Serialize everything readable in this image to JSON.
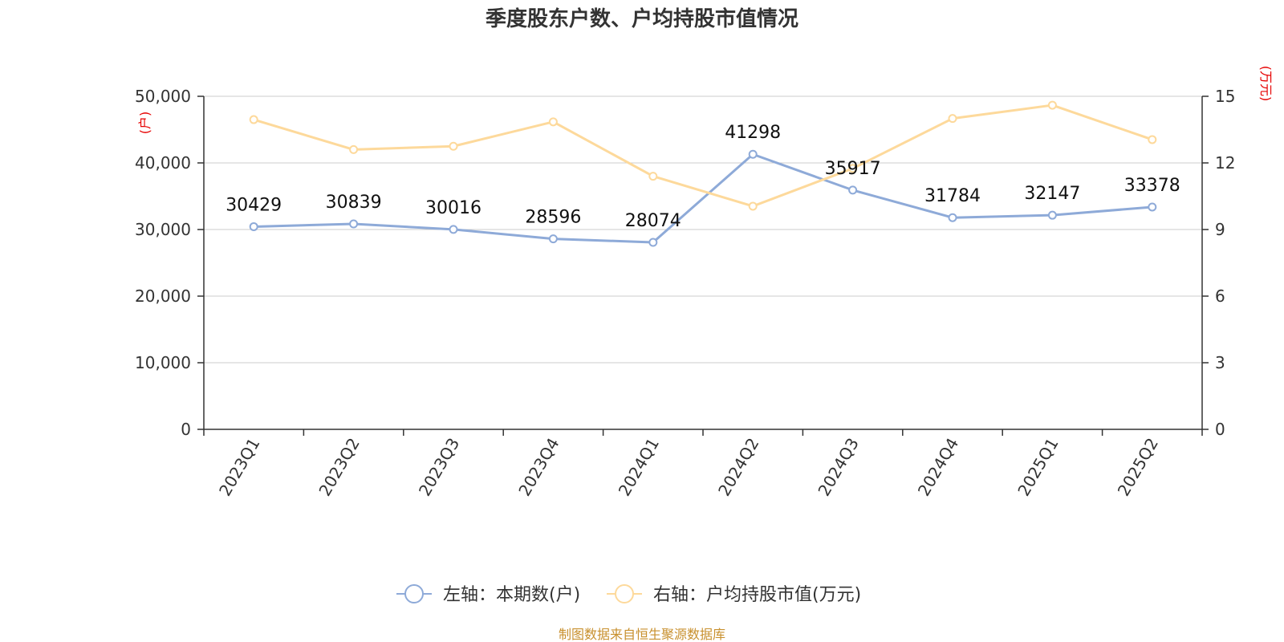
{
  "chart_data": {
    "type": "line",
    "title": "季度股东户数、户均持股市值情况",
    "categories": [
      "2023Q1",
      "2023Q2",
      "2023Q3",
      "2023Q4",
      "2024Q1",
      "2024Q2",
      "2024Q3",
      "2024Q4",
      "2025Q1",
      "2025Q2"
    ],
    "series": [
      {
        "name": "左轴：本期数(户)",
        "axis": "left",
        "color": "#8eaad8",
        "values": [
          30429,
          30839,
          30016,
          28596,
          28074,
          41298,
          35917,
          31784,
          32147,
          33378
        ],
        "data_labels": [
          "30429",
          "30839",
          "30016",
          "28596",
          "28074",
          "41298",
          "35917",
          "31784",
          "32147",
          "33378"
        ]
      },
      {
        "name": "右轴：户均持股市值(万元)",
        "axis": "right",
        "color": "#fdd99b",
        "values": [
          13.95,
          12.6,
          12.75,
          13.85,
          11.4,
          10.05,
          11.75,
          14.0,
          14.6,
          13.05
        ]
      }
    ],
    "left_axis": {
      "unit": "(户)",
      "ylim": [
        0,
        50000
      ],
      "ticks": [
        0,
        10000,
        20000,
        30000,
        40000,
        50000
      ],
      "tick_labels": [
        "0",
        "10,000",
        "20,000",
        "30,000",
        "40,000",
        "50,000"
      ]
    },
    "right_axis": {
      "unit": "(万元)",
      "ylim": [
        0,
        15
      ],
      "ticks": [
        0,
        3,
        6,
        9,
        12,
        15
      ],
      "tick_labels": [
        "0",
        "3",
        "6",
        "9",
        "12",
        "15"
      ]
    },
    "grid": true,
    "legend_position": "bottom"
  },
  "source": "制图数据来自恒生聚源数据库",
  "colors": {
    "grid": "#cccccc",
    "axis": "#333333",
    "unit": "#e60000",
    "source": "#c8902e"
  }
}
